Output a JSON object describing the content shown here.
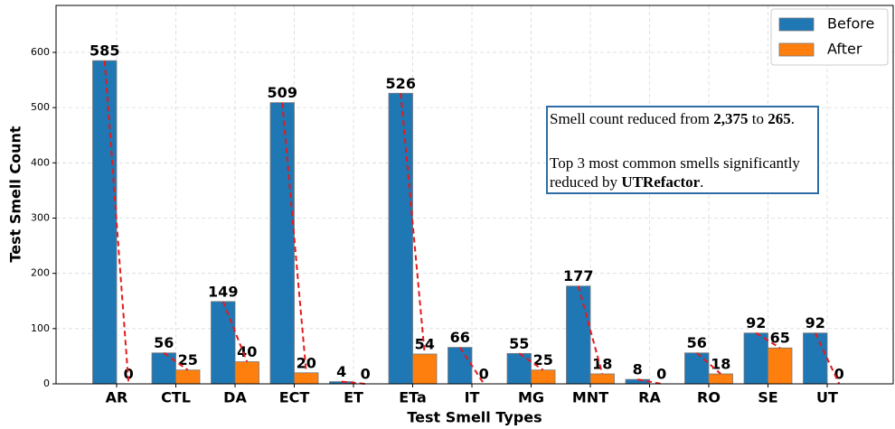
{
  "chart_data": {
    "type": "bar",
    "x_label": "Test Smell Types",
    "y_label": "Test Smell Count",
    "categories": [
      "AR",
      "CTL",
      "DA",
      "ECT",
      "ET",
      "ETa",
      "IT",
      "MG",
      "MNT",
      "RA",
      "RO",
      "SE",
      "UT"
    ],
    "series": [
      {
        "name": "Before",
        "color": "#1f77b4",
        "values": [
          585,
          56,
          149,
          509,
          4,
          526,
          66,
          55,
          177,
          8,
          56,
          92,
          92
        ]
      },
      {
        "name": "After",
        "color": "#ff7f0e",
        "values": [
          0,
          25,
          40,
          20,
          0,
          54,
          0,
          25,
          18,
          0,
          18,
          65,
          0
        ]
      }
    ],
    "ylim": [
      0,
      685
    ],
    "yticks": [
      0,
      100,
      200,
      300,
      400,
      500,
      600
    ],
    "grid": true,
    "legend": "upper right",
    "trend_color": "#e41a1c",
    "annotation": [
      [
        {
          "text": "Smell count reduced from ",
          "bold": false
        },
        {
          "text": "2,375",
          "bold": true
        },
        {
          "text": " to ",
          "bold": false
        },
        {
          "text": "265",
          "bold": true
        },
        {
          "text": ".",
          "bold": false
        }
      ],
      [
        {
          "text": "Top 3 most common smells significantly",
          "bold": false
        }
      ],
      [
        {
          "text": "reduced by ",
          "bold": false
        },
        {
          "text": "UTRefactor",
          "bold": true
        },
        {
          "text": ".",
          "bold": false
        }
      ]
    ]
  }
}
